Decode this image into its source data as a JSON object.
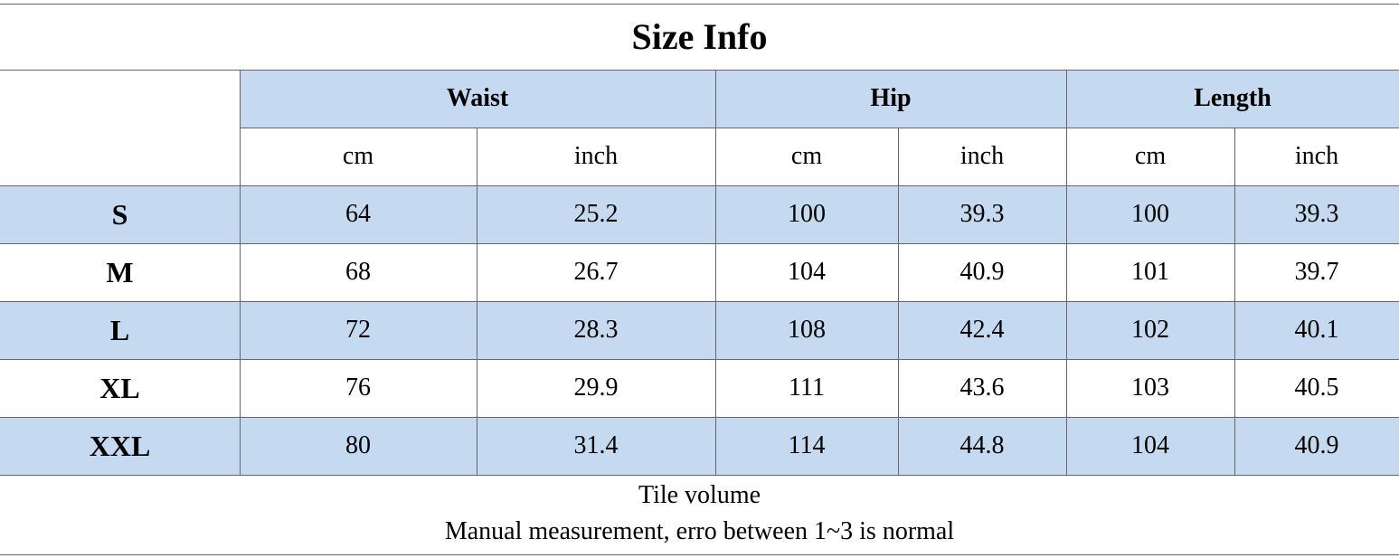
{
  "title": "Size Info",
  "table": {
    "groups": [
      "Waist",
      "Hip",
      "Length"
    ],
    "units": [
      "cm",
      "inch",
      "cm",
      "inch",
      "cm",
      "inch"
    ],
    "rows": [
      [
        "S",
        64,
        25.2,
        100,
        39.3,
        100,
        39.3
      ],
      [
        "M",
        68,
        26.7,
        104,
        40.9,
        101,
        39.7
      ],
      [
        "L",
        72,
        28.3,
        108,
        42.4,
        102,
        40.1
      ],
      [
        "XL",
        76,
        29.9,
        111,
        43.6,
        103,
        40.5
      ],
      [
        "XXL",
        80,
        31.4,
        114,
        44.8,
        104,
        40.9
      ]
    ]
  },
  "notes": [
    "Tile volume",
    "Manual measurement, erro between 1~3 is normal"
  ]
}
